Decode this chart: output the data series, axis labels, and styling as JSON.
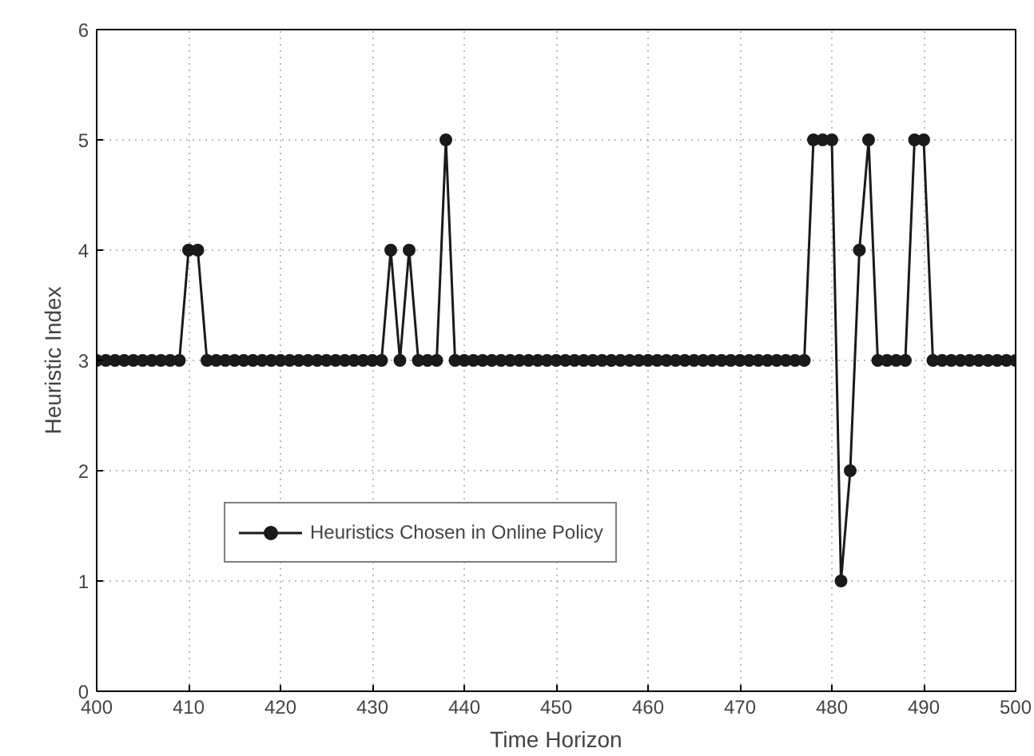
{
  "chart_data": {
    "type": "line",
    "xlabel": "Time Horizon",
    "ylabel": "Heuristic Index",
    "x": [
      400,
      401,
      402,
      403,
      404,
      405,
      406,
      407,
      408,
      409,
      410,
      411,
      412,
      413,
      414,
      415,
      416,
      417,
      418,
      419,
      420,
      421,
      422,
      423,
      424,
      425,
      426,
      427,
      428,
      429,
      430,
      431,
      432,
      433,
      434,
      435,
      436,
      437,
      438,
      439,
      440,
      441,
      442,
      443,
      444,
      445,
      446,
      447,
      448,
      449,
      450,
      451,
      452,
      453,
      454,
      455,
      456,
      457,
      458,
      459,
      460,
      461,
      462,
      463,
      464,
      465,
      466,
      467,
      468,
      469,
      470,
      471,
      472,
      473,
      474,
      475,
      476,
      477,
      478,
      479,
      480,
      481,
      482,
      483,
      484,
      485,
      486,
      487,
      488,
      489,
      490,
      491,
      492,
      493,
      494,
      495,
      496,
      497,
      498,
      499,
      500
    ],
    "series": [
      {
        "name": "Heuristics Chosen in Online Policy",
        "color": "#1a1a1a",
        "values": [
          3,
          3,
          3,
          3,
          3,
          3,
          3,
          3,
          3,
          3,
          4,
          4,
          3,
          3,
          3,
          3,
          3,
          3,
          3,
          3,
          3,
          3,
          3,
          3,
          3,
          3,
          3,
          3,
          3,
          3,
          3,
          3,
          4,
          3,
          4,
          3,
          3,
          3,
          5,
          3,
          3,
          3,
          3,
          3,
          3,
          3,
          3,
          3,
          3,
          3,
          3,
          3,
          3,
          3,
          3,
          3,
          3,
          3,
          3,
          3,
          3,
          3,
          3,
          3,
          3,
          3,
          3,
          3,
          3,
          3,
          3,
          3,
          3,
          3,
          3,
          3,
          3,
          3,
          5,
          5,
          5,
          1,
          2,
          4,
          5,
          3,
          3,
          3,
          3,
          5,
          5,
          3,
          3,
          3,
          3,
          3,
          3,
          3,
          3,
          3,
          3
        ]
      }
    ],
    "xlim": [
      400,
      500
    ],
    "xticks": [
      400,
      410,
      420,
      430,
      440,
      450,
      460,
      470,
      480,
      490,
      500
    ],
    "ylim": [
      0,
      6
    ],
    "yticks": [
      0,
      1,
      2,
      3,
      4,
      5,
      6
    ],
    "grid": true,
    "legend": "bottom left",
    "marker": "circle",
    "line_style": "solid"
  }
}
